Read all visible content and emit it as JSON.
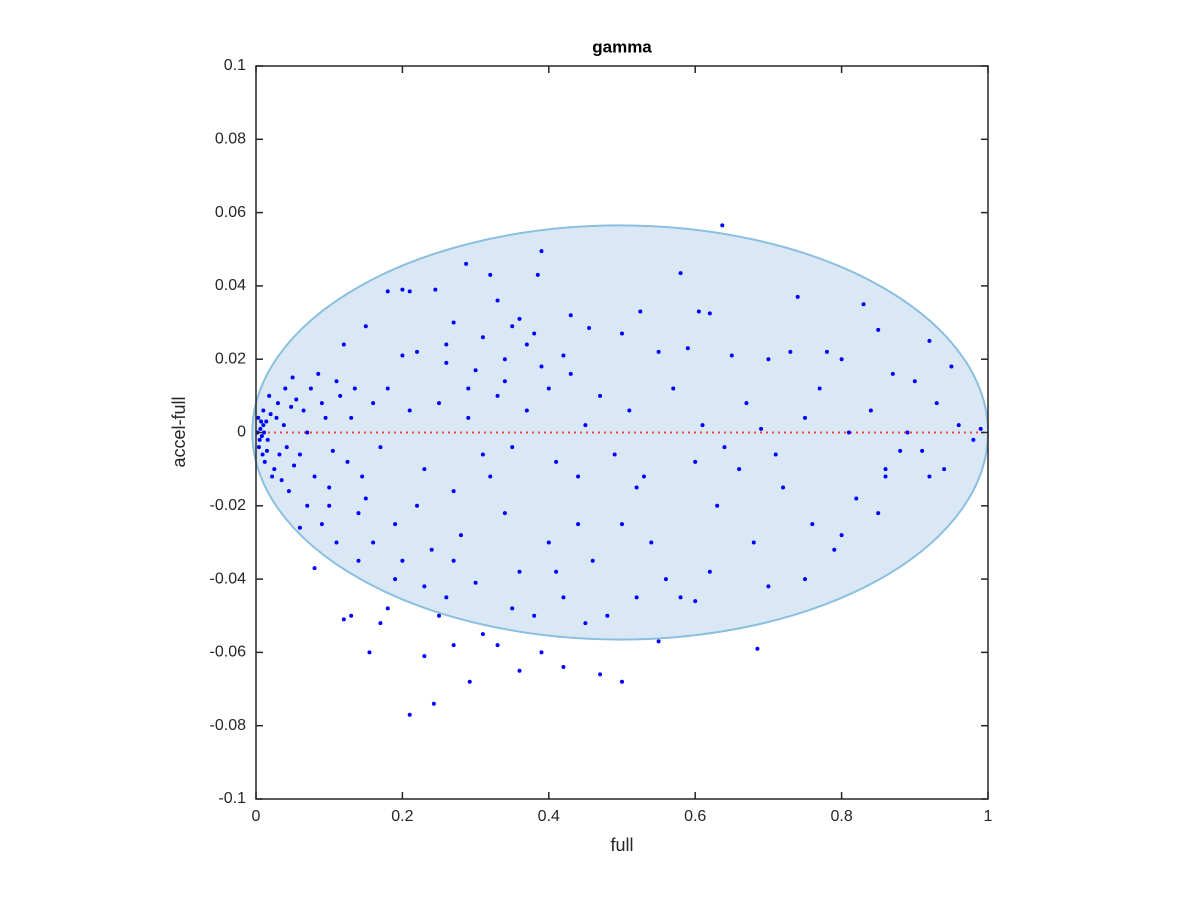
{
  "chart_data": {
    "type": "scatter",
    "title": "gamma",
    "x_label": "full",
    "y_label": "accel-full",
    "xlim": [
      0,
      1
    ],
    "xticks": [
      0,
      0.2,
      0.4,
      0.6,
      0.8,
      1
    ],
    "ylim": [
      -0.1,
      0.1
    ],
    "yticks": [
      -0.1,
      -0.08,
      -0.06,
      -0.04,
      -0.02,
      0,
      0.02,
      0.04,
      0.06,
      0.08,
      0.1
    ],
    "color": "#0000ff",
    "ellipse": {
      "center": [
        0.4975,
        0
      ],
      "radii": [
        0.5025,
        0.0565
      ],
      "fill": "#d9e8f4",
      "stroke": "#8cbfdf"
    },
    "hline": {
      "value": 0,
      "color": "#ff4040"
    },
    "x": [
      0.637,
      0.39,
      0.287,
      0.32,
      0.385,
      0.58,
      0.74,
      0.83,
      0.92,
      0.43,
      0.18,
      0.2,
      0.21,
      0.245,
      0.33,
      0.36,
      0.35,
      0.27,
      0.15,
      0.525,
      0.605,
      0.62,
      0.5,
      0.455,
      0.38,
      0.37,
      0.85,
      0.95,
      0.12,
      0.2,
      0.22,
      0.26,
      0.3,
      0.34,
      0.4,
      0.55,
      0.59,
      0.65,
      0.7,
      0.73,
      0.78,
      0.8,
      0.87,
      0.9,
      0.93,
      0.96,
      0.98,
      0.99,
      0.94,
      0.92,
      0.88,
      0.85,
      0.82,
      0.79,
      0.76,
      0.72,
      0.68,
      0.66,
      0.63,
      0.6,
      0.58,
      0.56,
      0.54,
      0.52,
      0.5,
      0.48,
      0.46,
      0.44,
      0.42,
      0.4,
      0.38,
      0.36,
      0.34,
      0.32,
      0.3,
      0.28,
      0.26,
      0.24,
      0.22,
      0.2,
      0.18,
      0.16,
      0.14,
      0.12,
      0.11,
      0.1,
      0.09,
      0.08,
      0.07,
      0.06,
      0.21,
      0.243,
      0.292,
      0.5,
      0.685,
      0.155,
      0.23,
      0.27,
      0.36,
      0.42,
      0.47,
      0.33,
      0.39,
      0.55,
      0.13,
      0.17,
      0.25,
      0.31,
      0.45,
      0.6,
      0.05,
      0.04,
      0.03,
      0.02,
      0.01,
      0.005,
      0.015,
      0.025,
      0.035,
      0.045,
      0.055,
      0.065,
      0.075,
      0.085,
      0.095,
      0.105,
      0.115,
      0.125,
      0.135,
      0.145,
      0.01,
      0.012,
      0.018,
      0.022,
      0.028,
      0.032,
      0.038,
      0.042,
      0.048,
      0.052,
      0.003,
      0.004,
      0.006,
      0.008,
      0.002,
      0.007,
      0.009,
      0.011,
      0.014,
      0.016,
      0.06,
      0.07,
      0.08,
      0.09,
      0.1,
      0.11,
      0.13,
      0.15,
      0.16,
      0.17,
      0.18,
      0.19,
      0.21,
      0.23,
      0.25,
      0.27,
      0.29,
      0.31,
      0.33,
      0.35,
      0.37,
      0.41,
      0.43,
      0.45,
      0.47,
      0.49,
      0.51,
      0.53,
      0.57,
      0.61,
      0.64,
      0.67,
      0.69,
      0.71,
      0.75,
      0.77,
      0.81,
      0.84,
      0.86,
      0.89,
      0.14,
      0.19,
      0.23,
      0.27,
      0.35,
      0.41,
      0.44,
      0.52,
      0.62,
      0.7,
      0.75,
      0.8,
      0.86,
      0.91,
      0.26,
      0.29,
      0.31,
      0.34,
      0.39,
      0.42
    ],
    "y": [
      0.0565,
      0.0495,
      0.046,
      0.043,
      0.043,
      0.0435,
      0.037,
      0.035,
      0.025,
      0.032,
      0.0385,
      0.039,
      0.0385,
      0.039,
      0.036,
      0.031,
      0.029,
      0.03,
      0.029,
      0.033,
      0.033,
      0.0325,
      0.027,
      0.0285,
      0.027,
      0.024,
      0.028,
      0.018,
      0.024,
      0.021,
      0.022,
      0.019,
      0.017,
      0.014,
      0.012,
      0.022,
      0.023,
      0.021,
      0.02,
      0.022,
      0.022,
      0.02,
      0.016,
      0.014,
      0.008,
      0.002,
      -0.002,
      0.001,
      -0.01,
      -0.012,
      -0.005,
      -0.022,
      -0.018,
      -0.032,
      -0.025,
      -0.015,
      -0.03,
      -0.01,
      -0.02,
      -0.008,
      -0.045,
      -0.04,
      -0.03,
      -0.015,
      -0.025,
      -0.05,
      -0.035,
      -0.012,
      -0.045,
      -0.03,
      -0.05,
      -0.038,
      -0.022,
      -0.012,
      -0.041,
      -0.028,
      -0.045,
      -0.032,
      -0.02,
      -0.035,
      -0.048,
      -0.03,
      -0.022,
      -0.051,
      -0.03,
      -0.015,
      -0.025,
      -0.037,
      -0.02,
      -0.026,
      -0.077,
      -0.074,
      -0.068,
      -0.068,
      -0.059,
      -0.06,
      -0.061,
      -0.058,
      -0.065,
      -0.064,
      -0.066,
      -0.058,
      -0.06,
      -0.057,
      -0.05,
      -0.052,
      -0.05,
      -0.055,
      -0.052,
      -0.046,
      0.015,
      0.012,
      0.008,
      0.005,
      0.002,
      -0.002,
      -0.005,
      -0.01,
      -0.013,
      -0.016,
      0.009,
      0.006,
      0.012,
      0.016,
      0.004,
      -0.005,
      0.01,
      -0.008,
      0.012,
      -0.012,
      0.006,
      -0.008,
      0.01,
      -0.012,
      0.004,
      -0.006,
      0.002,
      -0.004,
      0.007,
      -0.009,
      0.004,
      -0.004,
      0.001,
      -0.001,
      0.0,
      0.003,
      -0.006,
      0.0,
      0.003,
      -0.002,
      -0.006,
      0.0,
      -0.012,
      0.008,
      -0.02,
      0.014,
      0.004,
      -0.018,
      0.008,
      -0.004,
      0.012,
      -0.025,
      0.006,
      -0.01,
      0.008,
      -0.016,
      0.004,
      -0.006,
      0.01,
      -0.004,
      0.006,
      -0.008,
      0.016,
      0.002,
      0.01,
      -0.006,
      0.006,
      -0.012,
      0.012,
      0.002,
      -0.004,
      0.008,
      0.001,
      -0.006,
      0.004,
      0.012,
      0.0,
      0.006,
      -0.01,
      0.0,
      -0.035,
      -0.04,
      -0.042,
      -0.035,
      -0.048,
      -0.038,
      -0.025,
      -0.045,
      -0.038,
      -0.042,
      -0.04,
      -0.028,
      -0.012,
      -0.005,
      0.024,
      0.012,
      0.026,
      0.02,
      0.018,
      0.021
    ]
  }
}
